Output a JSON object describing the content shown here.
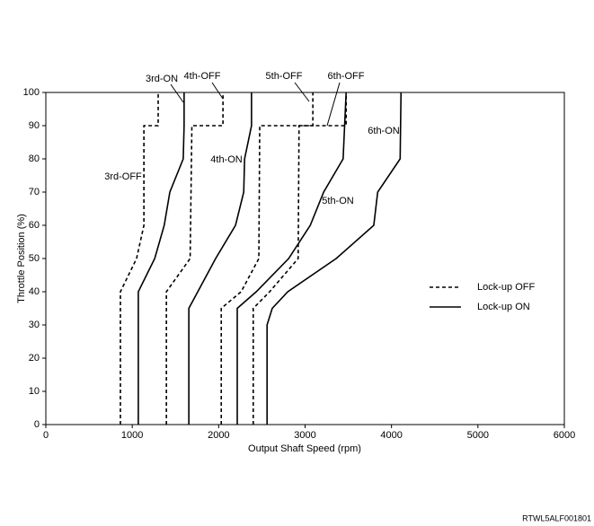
{
  "chart_data": {
    "type": "line",
    "xlabel": "Output Shaft Speed (rpm)",
    "ylabel": "Throttle Position (%)",
    "xlim": [
      0,
      6000
    ],
    "xticks": [
      0,
      1000,
      2000,
      3000,
      4000,
      5000,
      6000
    ],
    "ylim": [
      0,
      100
    ],
    "yticks": [
      0,
      10,
      20,
      30,
      40,
      50,
      60,
      70,
      80,
      90,
      100
    ],
    "legend_position": "right",
    "legend": [
      {
        "label": "Lock-up OFF",
        "style": "dashed"
      },
      {
        "label": "Lock-up ON",
        "style": "solid"
      }
    ],
    "series": [
      {
        "name": "3rd-OFF",
        "color": "#000000",
        "style": "dashed",
        "x": [
          863,
          863,
          1050,
          1135,
          1135,
          1300,
          1300
        ],
        "values": [
          0,
          40,
          50,
          60,
          90,
          90,
          100
        ]
      },
      {
        "name": "3rd-ON",
        "color": "#000000",
        "style": "solid",
        "x": [
          1070,
          1070,
          1260,
          1370,
          1435,
          1590,
          1600,
          1600
        ],
        "values": [
          0,
          40,
          50,
          60,
          70,
          80,
          90,
          100
        ]
      },
      {
        "name": "4th-OFF",
        "color": "#000000",
        "style": "dashed",
        "x": [
          1395,
          1395,
          1670,
          1690,
          2050,
          2050
        ],
        "values": [
          0,
          40,
          50,
          90,
          90,
          100
        ]
      },
      {
        "name": "4th-ON",
        "color": "#000000",
        "style": "solid",
        "x": [
          1655,
          1655,
          1965,
          2195,
          2290,
          2300,
          2380,
          2380
        ],
        "values": [
          0,
          35,
          50,
          60,
          70,
          80,
          90,
          100
        ]
      },
      {
        "name": "5th-OFF",
        "color": "#000000",
        "style": "dashed",
        "x": [
          2030,
          2030,
          2260,
          2465,
          2475,
          3090,
          3090
        ],
        "values": [
          0,
          35,
          40,
          50,
          90,
          90,
          100
        ]
      },
      {
        "name": "5th-ON",
        "color": "#000000",
        "style": "solid",
        "x": [
          2215,
          2215,
          2435,
          2810,
          3060,
          3215,
          3440,
          3475
        ],
        "values": [
          0,
          35,
          40,
          50,
          60,
          70,
          80,
          100
        ]
      },
      {
        "name": "6th-OFF",
        "color": "#000000",
        "style": "dashed",
        "x": [
          2400,
          2400,
          2590,
          2920,
          2930,
          3475,
          3475
        ],
        "values": [
          0,
          35,
          40,
          50,
          90,
          90,
          100
        ]
      },
      {
        "name": "6th-ON",
        "color": "#000000",
        "style": "solid",
        "x": [
          2560,
          2560,
          2620,
          2800,
          3360,
          3795,
          3840,
          4100,
          4110
        ],
        "values": [
          0,
          30,
          35,
          40,
          50,
          60,
          70,
          80,
          100
        ]
      }
    ],
    "footnote": "RTWL5ALF001801"
  }
}
